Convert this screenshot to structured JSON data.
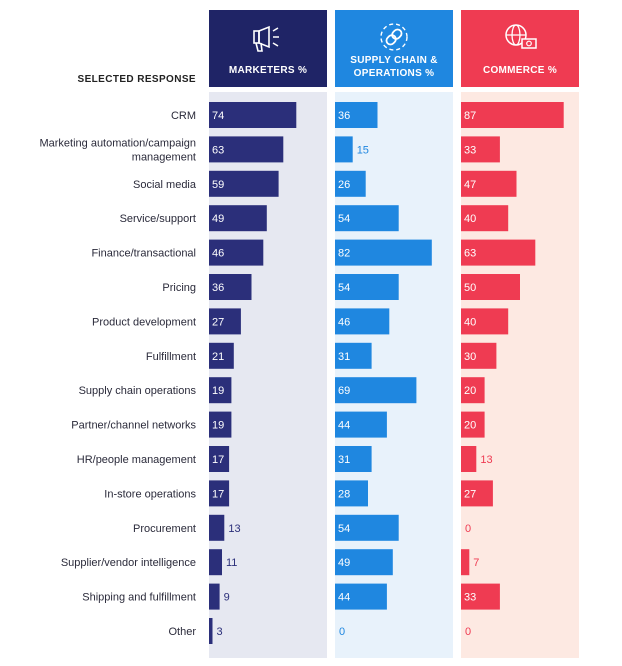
{
  "chart_data": {
    "type": "bar",
    "orientation": "horizontal",
    "category_header": "SELECTED RESPONSE",
    "categories": [
      "CRM",
      "Marketing automation/campaign management",
      "Social media",
      "Service/support",
      "Finance/transactional",
      "Pricing",
      "Product development",
      "Fulfillment",
      "Supply chain operations",
      "Partner/channel networks",
      "HR/people management",
      "In-store operations",
      "Procurement",
      "Supplier/vendor intelligence",
      "Shipping and fulfillment",
      "Other"
    ],
    "xlim": [
      0,
      100
    ],
    "series": [
      {
        "name": "MARKETERS %",
        "icon": "megaphone-icon",
        "header_color": "#1f2466",
        "bar_color": "#2b2f7a",
        "panel_color": "#e6e8f1",
        "values": [
          74,
          63,
          59,
          49,
          46,
          36,
          27,
          21,
          19,
          19,
          17,
          17,
          13,
          11,
          9,
          3
        ]
      },
      {
        "name": "SUPPLY CHAIN & OPERATIONS %",
        "icon": "chain-link-icon",
        "header_color": "#1f87e0",
        "bar_color": "#1f87e0",
        "panel_color": "#e8f2fb",
        "values": [
          36,
          15,
          26,
          54,
          82,
          54,
          46,
          31,
          69,
          44,
          31,
          28,
          54,
          49,
          44,
          0
        ]
      },
      {
        "name": "COMMERCE %",
        "icon": "globe-money-icon",
        "header_color": "#ef3b52",
        "bar_color": "#ef3b52",
        "panel_color": "#fde9e2",
        "values": [
          87,
          33,
          47,
          40,
          63,
          50,
          40,
          30,
          20,
          20,
          13,
          27,
          0,
          7,
          33,
          0
        ]
      }
    ]
  }
}
